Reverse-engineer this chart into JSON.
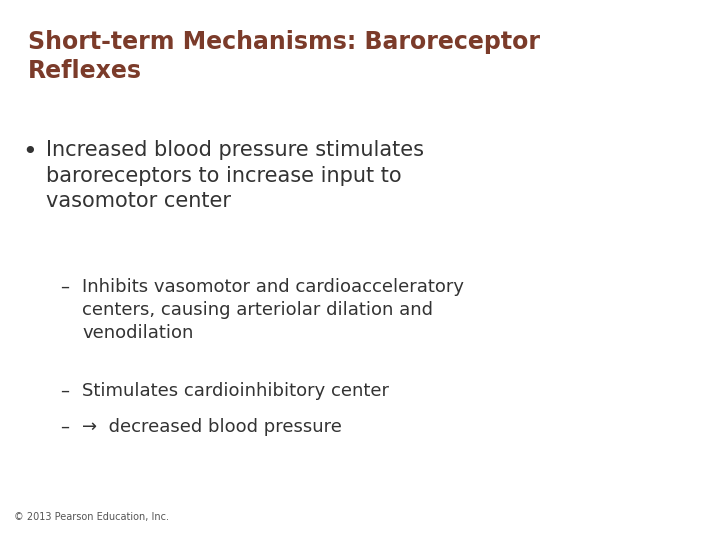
{
  "title_line1": "Short-term Mechanisms: Baroreceptor",
  "title_line2": "Reflexes",
  "title_color": "#7B3B2A",
  "background_color": "#FFFFFF",
  "bullet_text": "Increased blood pressure stimulates\nbaroreceptors to increase input to\nvasomotor center",
  "sub_bullets": [
    "Inhibits vasomotor and cardioacceleratory\ncenters, causing arteriolar dilation and\nvenodilation",
    "Stimulates cardioinhibitory center",
    "→  decreased blood pressure"
  ],
  "bullet_color": "#333333",
  "sub_bullet_color": "#333333",
  "footer": "© 2013 Pearson Education, Inc.",
  "footer_color": "#555555",
  "title_fontsize": 17,
  "bullet_fontsize": 15,
  "sub_bullet_fontsize": 13,
  "footer_fontsize": 7
}
